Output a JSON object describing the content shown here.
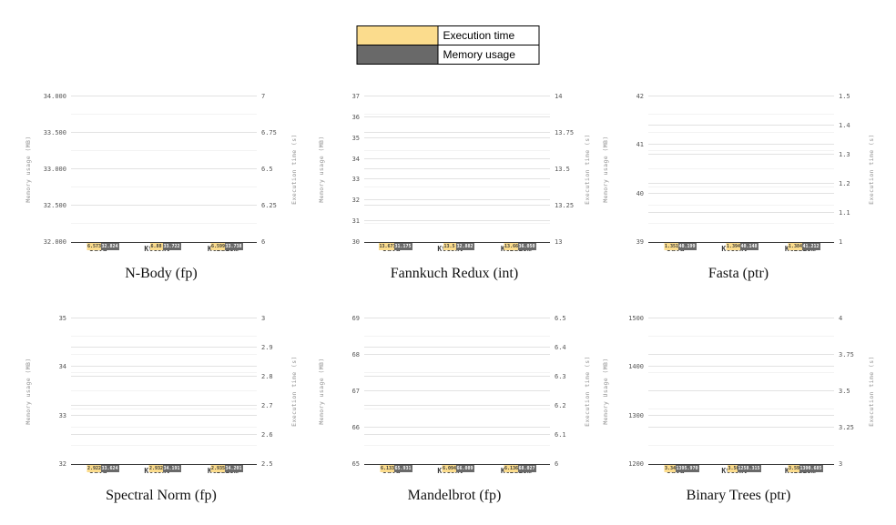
{
  "legend": {
    "items": [
      {
        "label": "Execution time",
        "color": "#FBDC8D"
      },
      {
        "label": "Memory usage",
        "color": "#696969"
      }
    ]
  },
  "chart_data": [
    {
      "type": "bar",
      "title": "N-Body (fp)",
      "ylabel_left": "Memory usage (MB)",
      "ylabel_right": "Execution time (s)",
      "left_ticks": [
        "34.000",
        "33.500",
        "33.000",
        "32.500",
        "32.000"
      ],
      "left_lim": [
        32,
        34
      ],
      "right_ticks": [
        "7",
        "6.75",
        "6.5",
        "6.25",
        "6"
      ],
      "right_lim": [
        6,
        7
      ],
      "categories": [
        "Java",
        "KtConv",
        "KtIdiom"
      ],
      "series": [
        {
          "name": "Execution time",
          "axis": "right",
          "values": [
            6.573,
            6.88,
            6.599
          ],
          "labels": [
            "6.573",
            "6.88",
            "6.599"
          ]
        },
        {
          "name": "Memory usage",
          "axis": "left",
          "values": [
            32.824,
            33.722,
            33.738
          ],
          "labels": [
            "32.824",
            "33.722",
            "33.738"
          ]
        }
      ]
    },
    {
      "type": "bar",
      "title": "Fannkuch Redux (int)",
      "ylabel_left": "Memory usage (MB)",
      "ylabel_right": "Execution time (s)",
      "left_ticks": [
        "37",
        "36",
        "35",
        "34",
        "33",
        "32",
        "31",
        "30"
      ],
      "left_lim": [
        30,
        37
      ],
      "right_ticks": [
        "14",
        "13.75",
        "13.5",
        "13.25",
        "13"
      ],
      "right_lim": [
        13,
        14
      ],
      "categories": [
        "Java",
        "KtConv",
        "KtIdiom"
      ],
      "series": [
        {
          "name": "Execution time",
          "axis": "right",
          "values": [
            13.673,
            13.5,
            13.66
          ],
          "labels": [
            "13.673",
            "13.5",
            "13.66"
          ]
        },
        {
          "name": "Memory usage",
          "axis": "left",
          "values": [
            31.175,
            32.882,
            36.05
          ],
          "labels": [
            "31.175",
            "32.882",
            "36.050"
          ]
        }
      ]
    },
    {
      "type": "bar",
      "title": "Fasta (ptr)",
      "ylabel_left": "Memory usage (MB)",
      "ylabel_right": "Execution time (s)",
      "left_ticks": [
        "42",
        "41",
        "40",
        "39"
      ],
      "left_lim": [
        39,
        42
      ],
      "right_ticks": [
        "1.5",
        "1.4",
        "1.3",
        "1.2",
        "1.1",
        "1"
      ],
      "right_lim": [
        1,
        1.5
      ],
      "categories": [
        "Java",
        "KtConv",
        "KtIdiom"
      ],
      "series": [
        {
          "name": "Execution time",
          "axis": "right",
          "values": [
            1.351,
            1.394,
            1.384
          ],
          "labels": [
            "1.351",
            "1.394",
            "1.384"
          ]
        },
        {
          "name": "Memory usage",
          "axis": "left",
          "values": [
            40.199,
            40.148,
            41.212
          ],
          "labels": [
            "40.199",
            "40.148",
            "41.212"
          ]
        }
      ]
    },
    {
      "type": "bar",
      "title": "Spectral Norm (fp)",
      "ylabel_left": "Memory usage (MB)",
      "ylabel_right": "Execution time (s)",
      "left_ticks": [
        "35",
        "34",
        "33",
        "32"
      ],
      "left_lim": [
        32,
        35
      ],
      "right_ticks": [
        "3",
        "2.9",
        "2.8",
        "2.7",
        "2.6",
        "2.5"
      ],
      "right_lim": [
        2.5,
        3
      ],
      "categories": [
        "Java",
        "KtConv",
        "KtIdiom"
      ],
      "series": [
        {
          "name": "Execution time",
          "axis": "right",
          "values": [
            2.922,
            2.932,
            2.935
          ],
          "labels": [
            "2.922",
            "2.932",
            "2.935"
          ]
        },
        {
          "name": "Memory usage",
          "axis": "left",
          "values": [
            33.624,
            34.191,
            34.201
          ],
          "labels": [
            "33.624",
            "34.191",
            "34.201"
          ]
        }
      ]
    },
    {
      "type": "bar",
      "title": "Mandelbrot (fp)",
      "ylabel_left": "Memory usage (MB)",
      "ylabel_right": "Execution time (s)",
      "left_ticks": [
        "69",
        "68",
        "67",
        "66",
        "65"
      ],
      "left_lim": [
        65,
        69
      ],
      "right_ticks": [
        "6.5",
        "6.4",
        "6.3",
        "6.2",
        "6.1",
        "6"
      ],
      "right_lim": [
        6,
        6.5
      ],
      "categories": [
        "Java",
        "KtConv",
        "KtIdiom"
      ],
      "series": [
        {
          "name": "Execution time",
          "axis": "right",
          "values": [
            6.133,
            6.094,
            6.136
          ],
          "labels": [
            "6.133",
            "6.094",
            "6.136"
          ]
        },
        {
          "name": "Memory usage",
          "axis": "left",
          "values": [
            65.931,
            66.089,
            68.027
          ],
          "labels": [
            "65.931",
            "66.089",
            "68.027"
          ]
        }
      ]
    },
    {
      "type": "bar",
      "title": "Binary Trees (ptr)",
      "ylabel_left": "Memory Usage (MB)",
      "ylabel_right": "Execution time (s)",
      "left_ticks": [
        "1500",
        "1400",
        "1300",
        "1200"
      ],
      "left_lim": [
        1200,
        1500
      ],
      "right_ticks": [
        "4",
        "3.75",
        "3.5",
        "3.25",
        "3"
      ],
      "right_lim": [
        3,
        4
      ],
      "categories": [
        "Java",
        "KtConv",
        "KtIdiom"
      ],
      "series": [
        {
          "name": "Execution time",
          "axis": "right",
          "values": [
            3.349,
            3.56,
            3.591
          ],
          "labels": [
            "3.349",
            "3.56",
            "3.591"
          ]
        },
        {
          "name": "Memory usage",
          "axis": "left",
          "values": [
            1395.97,
            1258.315,
            1390.685
          ],
          "labels": [
            "1395.970",
            "1258.315",
            "1390.685"
          ]
        }
      ]
    }
  ]
}
